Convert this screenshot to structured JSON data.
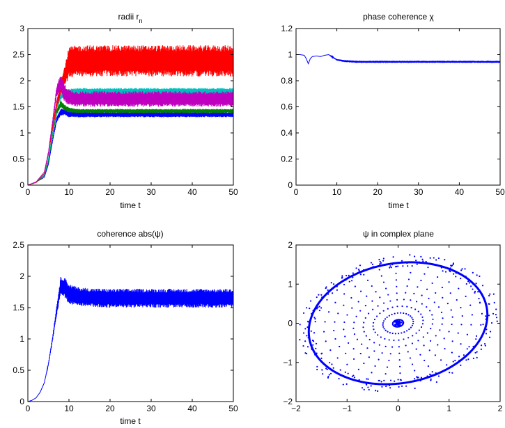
{
  "chart_data": [
    {
      "type": "line",
      "title": "radii r",
      "title_subscript": "n",
      "xlabel": "time t",
      "ylabel": "",
      "xlim": [
        0,
        50
      ],
      "ylim": [
        0,
        3
      ],
      "xticks": [
        0,
        10,
        20,
        30,
        40,
        50
      ],
      "yticks": [
        0,
        0.5,
        1,
        1.5,
        2,
        2.5,
        3
      ],
      "xtick_labels": [
        "0",
        "10",
        "20",
        "30",
        "40",
        "50"
      ],
      "ytick_labels": [
        "0",
        "0.5",
        "1",
        "1.5",
        "2",
        "2.5",
        "3"
      ],
      "grid": false,
      "series": [
        {
          "color": "#0000ff",
          "x": [
            0,
            2,
            4,
            5,
            6,
            7,
            8,
            9,
            10,
            12,
            20,
            30,
            40,
            50
          ],
          "y": [
            0.0,
            0.06,
            0.15,
            0.4,
            0.85,
            1.25,
            1.4,
            1.4,
            1.36,
            1.35,
            1.35,
            1.35,
            1.35,
            1.35
          ],
          "osc": [
            0,
            0,
            0,
            0,
            0.02,
            0.05,
            0.07,
            0.06,
            0.06,
            0.05,
            0.05,
            0.05,
            0.05,
            0.05
          ]
        },
        {
          "color": "#008000",
          "x": [
            0,
            2,
            4,
            5,
            6,
            7,
            8,
            9,
            10,
            12,
            20,
            30,
            40,
            50
          ],
          "y": [
            0.0,
            0.05,
            0.18,
            0.45,
            0.95,
            1.4,
            1.55,
            1.48,
            1.44,
            1.42,
            1.42,
            1.42,
            1.42,
            1.42
          ],
          "osc": [
            0,
            0,
            0,
            0,
            0.02,
            0.05,
            0.07,
            0.06,
            0.05,
            0.04,
            0.04,
            0.04,
            0.04,
            0.04
          ]
        },
        {
          "color": "#00bfbf",
          "x": [
            0,
            2,
            4,
            5,
            6,
            7,
            8,
            9,
            10,
            12,
            20,
            30,
            40,
            50
          ],
          "y": [
            0.0,
            0.06,
            0.2,
            0.5,
            1.0,
            1.5,
            1.7,
            1.75,
            1.78,
            1.79,
            1.79,
            1.79,
            1.79,
            1.79
          ],
          "osc": [
            0,
            0,
            0,
            0,
            0.02,
            0.05,
            0.06,
            0.07,
            0.07,
            0.07,
            0.07,
            0.07,
            0.07,
            0.07
          ]
        },
        {
          "color": "#ff0000",
          "x": [
            0,
            2,
            4,
            5,
            6,
            7,
            8,
            9,
            10,
            12,
            20,
            30,
            40,
            50
          ],
          "y": [
            0.0,
            0.05,
            0.22,
            0.6,
            1.1,
            1.55,
            1.85,
            2.1,
            2.35,
            2.38,
            2.38,
            2.38,
            2.38,
            2.38
          ],
          "osc": [
            0,
            0,
            0,
            0.02,
            0.05,
            0.08,
            0.12,
            0.2,
            0.3,
            0.3,
            0.3,
            0.3,
            0.3,
            0.3
          ]
        },
        {
          "color": "#bf00bf",
          "x": [
            0,
            2,
            4,
            5,
            6,
            7,
            8,
            9,
            10,
            12,
            20,
            30,
            40,
            50
          ],
          "y": [
            0.0,
            0.06,
            0.25,
            0.62,
            1.2,
            1.8,
            1.95,
            1.75,
            1.68,
            1.65,
            1.65,
            1.65,
            1.65,
            1.65
          ],
          "osc": [
            0,
            0,
            0,
            0.02,
            0.05,
            0.1,
            0.18,
            0.18,
            0.15,
            0.15,
            0.15,
            0.15,
            0.15,
            0.15
          ]
        }
      ]
    },
    {
      "type": "line",
      "title": "phase coherence χ",
      "xlabel": "time t",
      "ylabel": "",
      "xlim": [
        0,
        50
      ],
      "ylim": [
        0,
        1.2
      ],
      "xticks": [
        0,
        10,
        20,
        30,
        40,
        50
      ],
      "yticks": [
        0,
        0.2,
        0.4,
        0.6,
        0.8,
        1,
        1.2
      ],
      "xtick_labels": [
        "0",
        "10",
        "20",
        "30",
        "40",
        "50"
      ],
      "ytick_labels": [
        "0",
        "0.2",
        "0.4",
        "0.6",
        "0.8",
        "1",
        "1.2"
      ],
      "grid": false,
      "series": [
        {
          "color": "#0000ff",
          "x": [
            0,
            1,
            2,
            2.5,
            3,
            3.5,
            4,
            5,
            6,
            7,
            8,
            9,
            10,
            12,
            15,
            20,
            30,
            40,
            50
          ],
          "y": [
            1.0,
            1.0,
            0.995,
            0.97,
            0.93,
            0.97,
            0.985,
            0.99,
            0.985,
            0.995,
            1.0,
            0.98,
            0.96,
            0.95,
            0.945,
            0.945,
            0.945,
            0.945,
            0.945
          ],
          "osc": [
            0,
            0,
            0,
            0,
            0,
            0,
            0,
            0,
            0,
            0,
            0,
            0.004,
            0.006,
            0.008,
            0.008,
            0.008,
            0.008,
            0.008,
            0.008
          ]
        }
      ]
    },
    {
      "type": "line",
      "title": "coherence abs(ψ)",
      "xlabel": "time t",
      "ylabel": "",
      "xlim": [
        0,
        50
      ],
      "ylim": [
        0,
        2.5
      ],
      "xticks": [
        0,
        10,
        20,
        30,
        40,
        50
      ],
      "yticks": [
        0,
        0.5,
        1,
        1.5,
        2,
        2.5
      ],
      "xtick_labels": [
        "0",
        "10",
        "20",
        "30",
        "40",
        "50"
      ],
      "ytick_labels": [
        "0",
        "0.5",
        "1",
        "1.5",
        "2",
        "2.5"
      ],
      "grid": false,
      "series": [
        {
          "color": "#0000ff",
          "x": [
            0,
            1,
            2,
            3,
            4,
            5,
            6,
            7,
            8,
            9,
            10,
            12,
            15,
            20,
            30,
            40,
            50
          ],
          "y": [
            0.0,
            0.02,
            0.06,
            0.15,
            0.3,
            0.6,
            1.0,
            1.45,
            1.85,
            1.82,
            1.72,
            1.68,
            1.66,
            1.65,
            1.65,
            1.65,
            1.65
          ],
          "osc": [
            0,
            0,
            0,
            0,
            0,
            0.02,
            0.04,
            0.08,
            0.14,
            0.17,
            0.16,
            0.15,
            0.15,
            0.15,
            0.15,
            0.15,
            0.15
          ]
        }
      ]
    },
    {
      "type": "scatter",
      "title": "ψ in complex plane",
      "xlabel": "",
      "ylabel": "",
      "xlim": [
        -2,
        2
      ],
      "ylim": [
        -2,
        2
      ],
      "xticks": [
        -2,
        -1,
        0,
        1,
        2
      ],
      "yticks": [
        -2,
        -1,
        0,
        1,
        2
      ],
      "xtick_labels": [
        "−2",
        "−1",
        "0",
        "1",
        "2"
      ],
      "ytick_labels": [
        "−2",
        "−1",
        "0",
        "1",
        "2"
      ],
      "grid": false,
      "series": [
        {
          "color": "#0000ff",
          "ellipse": {
            "center": [
              0,
              0
            ],
            "semi_major": 1.8,
            "semi_minor": 1.5,
            "tilt_deg": 25
          },
          "spokes": 32,
          "scatter_spread": 0.12
        }
      ]
    }
  ]
}
